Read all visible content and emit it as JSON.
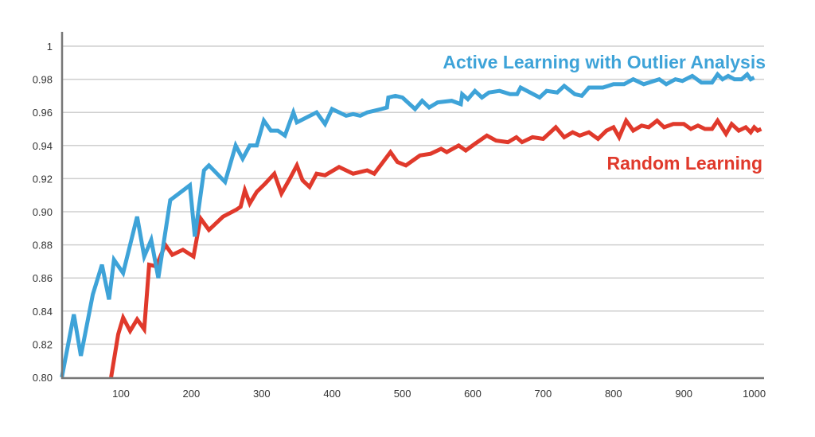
{
  "chart_data": {
    "type": "line",
    "title": "",
    "xlabel": "",
    "ylabel": "",
    "xlim": [
      16,
      1000
    ],
    "ylim": [
      0.8,
      1.0
    ],
    "grid": "horizontal",
    "x_ticks": [
      100,
      200,
      300,
      400,
      500,
      600,
      700,
      800,
      900,
      1000
    ],
    "y_ticks": [
      0.8,
      0.82,
      0.84,
      0.86,
      0.88,
      0.9,
      0.92,
      0.94,
      0.96,
      0.98,
      1
    ],
    "y_tick_labels": [
      "0.80",
      "0.82",
      "0.84",
      "0.86",
      "0.88",
      "0.90",
      "0.92",
      "0.94",
      "0.96",
      "0.98",
      "1"
    ],
    "legend": "inline-right",
    "series": [
      {
        "name": "Active Learning with Outlier Analysis",
        "color": "#3ea3d8",
        "points": [
          [
            16,
            0.8
          ],
          [
            33,
            0.838
          ],
          [
            43,
            0.813
          ],
          [
            60,
            0.85
          ],
          [
            73,
            0.868
          ],
          [
            83,
            0.847
          ],
          [
            90,
            0.871
          ],
          [
            103,
            0.863
          ],
          [
            123,
            0.897
          ],
          [
            133,
            0.873
          ],
          [
            143,
            0.883
          ],
          [
            153,
            0.86
          ],
          [
            170,
            0.907
          ],
          [
            198,
            0.916
          ],
          [
            205,
            0.885
          ],
          [
            218,
            0.925
          ],
          [
            225,
            0.928
          ],
          [
            248,
            0.918
          ],
          [
            263,
            0.94
          ],
          [
            273,
            0.932
          ],
          [
            283,
            0.94
          ],
          [
            293,
            0.94
          ],
          [
            303,
            0.955
          ],
          [
            313,
            0.949
          ],
          [
            323,
            0.949
          ],
          [
            333,
            0.946
          ],
          [
            345,
            0.96
          ],
          [
            350,
            0.954
          ],
          [
            378,
            0.96
          ],
          [
            390,
            0.953
          ],
          [
            400,
            0.962
          ],
          [
            420,
            0.958
          ],
          [
            430,
            0.959
          ],
          [
            440,
            0.958
          ],
          [
            450,
            0.96
          ],
          [
            470,
            0.962
          ],
          [
            478,
            0.963
          ],
          [
            480,
            0.969
          ],
          [
            490,
            0.97
          ],
          [
            500,
            0.969
          ],
          [
            518,
            0.962
          ],
          [
            528,
            0.967
          ],
          [
            538,
            0.963
          ],
          [
            550,
            0.966
          ],
          [
            570,
            0.967
          ],
          [
            583,
            0.965
          ],
          [
            585,
            0.971
          ],
          [
            593,
            0.968
          ],
          [
            603,
            0.973
          ],
          [
            613,
            0.969
          ],
          [
            623,
            0.972
          ],
          [
            638,
            0.973
          ],
          [
            653,
            0.971
          ],
          [
            663,
            0.971
          ],
          [
            668,
            0.975
          ],
          [
            695,
            0.969
          ],
          [
            705,
            0.973
          ],
          [
            720,
            0.972
          ],
          [
            730,
            0.976
          ],
          [
            745,
            0.971
          ],
          [
            755,
            0.97
          ],
          [
            765,
            0.975
          ],
          [
            785,
            0.975
          ],
          [
            800,
            0.977
          ],
          [
            815,
            0.977
          ],
          [
            828,
            0.98
          ],
          [
            843,
            0.977
          ],
          [
            865,
            0.98
          ],
          [
            875,
            0.977
          ],
          [
            888,
            0.98
          ],
          [
            898,
            0.979
          ],
          [
            912,
            0.982
          ],
          [
            925,
            0.978
          ],
          [
            940,
            0.978
          ],
          [
            948,
            0.983
          ],
          [
            955,
            0.98
          ],
          [
            963,
            0.982
          ],
          [
            972,
            0.98
          ],
          [
            982,
            0.98
          ],
          [
            990,
            0.983
          ],
          [
            995,
            0.98
          ],
          [
            1000,
            0.981
          ]
        ]
      },
      {
        "name": "Random Learning",
        "color": "#e0392b",
        "points": [
          [
            86,
            0.8
          ],
          [
            96,
            0.826
          ],
          [
            103,
            0.836
          ],
          [
            113,
            0.828
          ],
          [
            123,
            0.835
          ],
          [
            133,
            0.829
          ],
          [
            140,
            0.868
          ],
          [
            150,
            0.867
          ],
          [
            163,
            0.88
          ],
          [
            173,
            0.874
          ],
          [
            188,
            0.877
          ],
          [
            203,
            0.873
          ],
          [
            213,
            0.896
          ],
          [
            225,
            0.889
          ],
          [
            245,
            0.897
          ],
          [
            263,
            0.901
          ],
          [
            270,
            0.903
          ],
          [
            276,
            0.913
          ],
          [
            283,
            0.905
          ],
          [
            293,
            0.912
          ],
          [
            305,
            0.917
          ],
          [
            318,
            0.923
          ],
          [
            328,
            0.911
          ],
          [
            340,
            0.92
          ],
          [
            350,
            0.928
          ],
          [
            358,
            0.919
          ],
          [
            368,
            0.915
          ],
          [
            378,
            0.923
          ],
          [
            390,
            0.922
          ],
          [
            410,
            0.927
          ],
          [
            430,
            0.923
          ],
          [
            450,
            0.925
          ],
          [
            460,
            0.923
          ],
          [
            483,
            0.936
          ],
          [
            493,
            0.93
          ],
          [
            505,
            0.928
          ],
          [
            525,
            0.934
          ],
          [
            540,
            0.935
          ],
          [
            555,
            0.938
          ],
          [
            563,
            0.936
          ],
          [
            580,
            0.94
          ],
          [
            590,
            0.937
          ],
          [
            603,
            0.941
          ],
          [
            620,
            0.946
          ],
          [
            633,
            0.943
          ],
          [
            650,
            0.942
          ],
          [
            662,
            0.945
          ],
          [
            670,
            0.942
          ],
          [
            685,
            0.945
          ],
          [
            700,
            0.944
          ],
          [
            718,
            0.951
          ],
          [
            730,
            0.945
          ],
          [
            742,
            0.948
          ],
          [
            752,
            0.946
          ],
          [
            765,
            0.948
          ],
          [
            778,
            0.944
          ],
          [
            790,
            0.949
          ],
          [
            800,
            0.951
          ],
          [
            808,
            0.945
          ],
          [
            818,
            0.955
          ],
          [
            828,
            0.949
          ],
          [
            840,
            0.952
          ],
          [
            850,
            0.951
          ],
          [
            862,
            0.955
          ],
          [
            872,
            0.951
          ],
          [
            885,
            0.953
          ],
          [
            900,
            0.953
          ],
          [
            910,
            0.95
          ],
          [
            920,
            0.952
          ],
          [
            930,
            0.95
          ],
          [
            940,
            0.95
          ],
          [
            948,
            0.955
          ],
          [
            960,
            0.947
          ],
          [
            968,
            0.953
          ],
          [
            978,
            0.949
          ],
          [
            988,
            0.951
          ],
          [
            995,
            0.948
          ],
          [
            1000,
            0.951
          ],
          [
            1005,
            0.949
          ],
          [
            1010,
            0.95
          ]
        ]
      }
    ]
  }
}
